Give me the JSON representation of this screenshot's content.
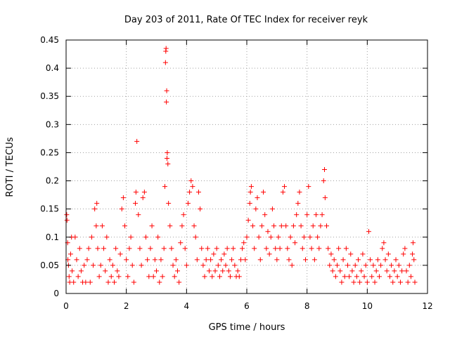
{
  "chart_data": {
    "type": "scatter",
    "title": "Day 203 of 2011, Rate Of TEC Index for receiver reyk",
    "xlabel": "GPS time / hours",
    "ylabel": "ROTI / TECUs",
    "xlim": [
      0,
      12
    ],
    "ylim": [
      0,
      0.45
    ],
    "x_ticks": [
      0,
      2,
      4,
      6,
      8,
      10,
      12
    ],
    "x_tick_labels": [
      "0",
      "2",
      "4",
      "6",
      "8",
      "10",
      "12"
    ],
    "y_ticks": [
      0,
      0.05,
      0.1,
      0.15,
      0.2,
      0.25,
      0.3,
      0.35,
      0.4,
      0.45
    ],
    "y_tick_labels": [
      "0",
      "0.05",
      "0.1",
      "0.15",
      "0.2",
      "0.25",
      "0.3",
      "0.35",
      "0.4",
      "0.45"
    ],
    "grid": true,
    "marker": "+",
    "marker_color": "#ff0000",
    "series": [
      {
        "name": "ROTI",
        "points": [
          [
            0.02,
            0.14
          ],
          [
            0.03,
            0.13
          ],
          [
            0.05,
            0.09
          ],
          [
            0.06,
            0.06
          ],
          [
            0.08,
            0.05
          ],
          [
            0.1,
            0.03
          ],
          [
            0.12,
            0.02
          ],
          [
            0.15,
            0.07
          ],
          [
            0.18,
            0.1
          ],
          [
            0.2,
            0.04
          ],
          [
            0.25,
            0.02
          ],
          [
            0.3,
            0.1
          ],
          [
            0.35,
            0.06
          ],
          [
            0.4,
            0.03
          ],
          [
            0.45,
            0.08
          ],
          [
            0.5,
            0.04
          ],
          [
            0.55,
            0.02
          ],
          [
            0.6,
            0.05
          ],
          [
            0.65,
            0.02
          ],
          [
            0.7,
            0.06
          ],
          [
            0.75,
            0.08
          ],
          [
            0.8,
            0.02
          ],
          [
            0.85,
            0.1
          ],
          [
            0.9,
            0.05
          ],
          [
            0.95,
            0.15
          ],
          [
            1.0,
            0.12
          ],
          [
            1.02,
            0.16
          ],
          [
            1.05,
            0.08
          ],
          [
            1.1,
            0.03
          ],
          [
            1.15,
            0.05
          ],
          [
            1.2,
            0.12
          ],
          [
            1.25,
            0.08
          ],
          [
            1.3,
            0.04
          ],
          [
            1.35,
            0.1
          ],
          [
            1.4,
            0.02
          ],
          [
            1.45,
            0.06
          ],
          [
            1.5,
            0.03
          ],
          [
            1.55,
            0.05
          ],
          [
            1.6,
            0.02
          ],
          [
            1.65,
            0.08
          ],
          [
            1.7,
            0.04
          ],
          [
            1.75,
            0.03
          ],
          [
            1.8,
            0.07
          ],
          [
            1.85,
            0.15
          ],
          [
            1.9,
            0.17
          ],
          [
            1.95,
            0.12
          ],
          [
            2.0,
            0.06
          ],
          [
            2.05,
            0.03
          ],
          [
            2.1,
            0.08
          ],
          [
            2.15,
            0.1
          ],
          [
            2.2,
            0.05
          ],
          [
            2.25,
            0.02
          ],
          [
            2.3,
            0.16
          ],
          [
            2.32,
            0.18
          ],
          [
            2.35,
            0.27
          ],
          [
            2.4,
            0.14
          ],
          [
            2.45,
            0.08
          ],
          [
            2.5,
            0.05
          ],
          [
            2.55,
            0.17
          ],
          [
            2.6,
            0.18
          ],
          [
            2.65,
            0.1
          ],
          [
            2.7,
            0.06
          ],
          [
            2.75,
            0.03
          ],
          [
            2.8,
            0.08
          ],
          [
            2.85,
            0.12
          ],
          [
            2.9,
            0.03
          ],
          [
            2.95,
            0.06
          ],
          [
            3.0,
            0.04
          ],
          [
            3.05,
            0.1
          ],
          [
            3.1,
            0.02
          ],
          [
            3.15,
            0.06
          ],
          [
            3.2,
            0.03
          ],
          [
            3.25,
            0.08
          ],
          [
            3.28,
            0.19
          ],
          [
            3.3,
            0.41
          ],
          [
            3.31,
            0.43
          ],
          [
            3.32,
            0.435
          ],
          [
            3.33,
            0.34
          ],
          [
            3.34,
            0.36
          ],
          [
            3.35,
            0.24
          ],
          [
            3.36,
            0.25
          ],
          [
            3.38,
            0.23
          ],
          [
            3.4,
            0.16
          ],
          [
            3.45,
            0.12
          ],
          [
            3.5,
            0.08
          ],
          [
            3.55,
            0.05
          ],
          [
            3.6,
            0.03
          ],
          [
            3.65,
            0.06
          ],
          [
            3.7,
            0.04
          ],
          [
            3.75,
            0.02
          ],
          [
            3.8,
            0.09
          ],
          [
            3.85,
            0.12
          ],
          [
            3.9,
            0.14
          ],
          [
            3.95,
            0.08
          ],
          [
            4.0,
            0.05
          ],
          [
            4.05,
            0.16
          ],
          [
            4.1,
            0.18
          ],
          [
            4.15,
            0.2
          ],
          [
            4.2,
            0.19
          ],
          [
            4.25,
            0.12
          ],
          [
            4.3,
            0.1
          ],
          [
            4.35,
            0.06
          ],
          [
            4.4,
            0.18
          ],
          [
            4.45,
            0.15
          ],
          [
            4.5,
            0.08
          ],
          [
            4.55,
            0.05
          ],
          [
            4.6,
            0.03
          ],
          [
            4.65,
            0.06
          ],
          [
            4.7,
            0.08
          ],
          [
            4.75,
            0.04
          ],
          [
            4.8,
            0.06
          ],
          [
            4.85,
            0.03
          ],
          [
            4.9,
            0.07
          ],
          [
            4.95,
            0.04
          ],
          [
            5.0,
            0.08
          ],
          [
            5.05,
            0.05
          ],
          [
            5.1,
            0.03
          ],
          [
            5.15,
            0.06
          ],
          [
            5.2,
            0.04
          ],
          [
            5.25,
            0.07
          ],
          [
            5.3,
            0.05
          ],
          [
            5.35,
            0.08
          ],
          [
            5.4,
            0.04
          ],
          [
            5.45,
            0.03
          ],
          [
            5.5,
            0.06
          ],
          [
            5.55,
            0.08
          ],
          [
            5.6,
            0.05
          ],
          [
            5.65,
            0.03
          ],
          [
            5.7,
            0.04
          ],
          [
            5.75,
            0.03
          ],
          [
            5.8,
            0.06
          ],
          [
            5.85,
            0.08
          ],
          [
            5.9,
            0.09
          ],
          [
            5.95,
            0.06
          ],
          [
            6.0,
            0.1
          ],
          [
            6.05,
            0.13
          ],
          [
            6.1,
            0.16
          ],
          [
            6.12,
            0.18
          ],
          [
            6.15,
            0.19
          ],
          [
            6.2,
            0.12
          ],
          [
            6.25,
            0.08
          ],
          [
            6.3,
            0.15
          ],
          [
            6.35,
            0.17
          ],
          [
            6.4,
            0.1
          ],
          [
            6.45,
            0.06
          ],
          [
            6.5,
            0.12
          ],
          [
            6.55,
            0.18
          ],
          [
            6.6,
            0.14
          ],
          [
            6.65,
            0.08
          ],
          [
            6.7,
            0.11
          ],
          [
            6.75,
            0.07
          ],
          [
            6.8,
            0.1
          ],
          [
            6.85,
            0.15
          ],
          [
            6.9,
            0.12
          ],
          [
            6.95,
            0.08
          ],
          [
            7.0,
            0.06
          ],
          [
            7.05,
            0.1
          ],
          [
            7.1,
            0.08
          ],
          [
            7.15,
            0.12
          ],
          [
            7.2,
            0.18
          ],
          [
            7.25,
            0.19
          ],
          [
            7.3,
            0.12
          ],
          [
            7.35,
            0.08
          ],
          [
            7.4,
            0.06
          ],
          [
            7.45,
            0.1
          ],
          [
            7.5,
            0.05
          ],
          [
            7.55,
            0.12
          ],
          [
            7.6,
            0.09
          ],
          [
            7.65,
            0.14
          ],
          [
            7.7,
            0.16
          ],
          [
            7.75,
            0.18
          ],
          [
            7.8,
            0.12
          ],
          [
            7.85,
            0.08
          ],
          [
            7.9,
            0.1
          ],
          [
            7.95,
            0.06
          ],
          [
            8.0,
            0.14
          ],
          [
            8.05,
            0.19
          ],
          [
            8.1,
            0.1
          ],
          [
            8.15,
            0.08
          ],
          [
            8.2,
            0.12
          ],
          [
            8.25,
            0.06
          ],
          [
            8.3,
            0.14
          ],
          [
            8.35,
            0.1
          ],
          [
            8.4,
            0.08
          ],
          [
            8.45,
            0.12
          ],
          [
            8.5,
            0.14
          ],
          [
            8.55,
            0.2
          ],
          [
            8.58,
            0.22
          ],
          [
            8.6,
            0.17
          ],
          [
            8.65,
            0.12
          ],
          [
            8.7,
            0.08
          ],
          [
            8.75,
            0.05
          ],
          [
            8.8,
            0.07
          ],
          [
            8.85,
            0.04
          ],
          [
            8.9,
            0.06
          ],
          [
            8.95,
            0.03
          ],
          [
            9.0,
            0.05
          ],
          [
            9.05,
            0.08
          ],
          [
            9.1,
            0.04
          ],
          [
            9.15,
            0.02
          ],
          [
            9.2,
            0.06
          ],
          [
            9.25,
            0.03
          ],
          [
            9.3,
            0.08
          ],
          [
            9.35,
            0.05
          ],
          [
            9.4,
            0.03
          ],
          [
            9.45,
            0.07
          ],
          [
            9.5,
            0.04
          ],
          [
            9.55,
            0.02
          ],
          [
            9.6,
            0.05
          ],
          [
            9.65,
            0.03
          ],
          [
            9.7,
            0.06
          ],
          [
            9.75,
            0.02
          ],
          [
            9.8,
            0.04
          ],
          [
            9.85,
            0.07
          ],
          [
            9.9,
            0.03
          ],
          [
            9.95,
            0.05
          ],
          [
            10.0,
            0.02
          ],
          [
            10.05,
            0.11
          ],
          [
            10.1,
            0.06
          ],
          [
            10.15,
            0.03
          ],
          [
            10.2,
            0.05
          ],
          [
            10.25,
            0.02
          ],
          [
            10.3,
            0.04
          ],
          [
            10.35,
            0.06
          ],
          [
            10.4,
            0.03
          ],
          [
            10.45,
            0.05
          ],
          [
            10.5,
            0.08
          ],
          [
            10.55,
            0.09
          ],
          [
            10.6,
            0.06
          ],
          [
            10.65,
            0.04
          ],
          [
            10.7,
            0.07
          ],
          [
            10.75,
            0.03
          ],
          [
            10.8,
            0.05
          ],
          [
            10.85,
            0.02
          ],
          [
            10.9,
            0.04
          ],
          [
            10.95,
            0.06
          ],
          [
            11.0,
            0.03
          ],
          [
            11.05,
            0.05
          ],
          [
            11.1,
            0.02
          ],
          [
            11.15,
            0.04
          ],
          [
            11.2,
            0.07
          ],
          [
            11.25,
            0.08
          ],
          [
            11.3,
            0.04
          ],
          [
            11.35,
            0.02
          ],
          [
            11.4,
            0.05
          ],
          [
            11.45,
            0.03
          ],
          [
            11.5,
            0.07
          ],
          [
            11.52,
            0.09
          ],
          [
            11.55,
            0.06
          ],
          [
            11.58,
            0.02
          ]
        ]
      }
    ]
  }
}
